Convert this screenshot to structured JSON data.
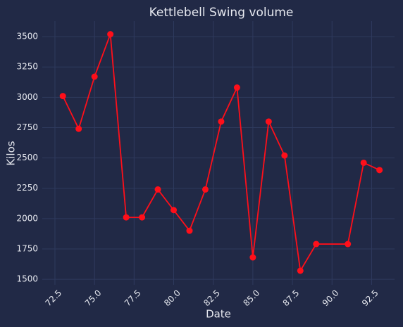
{
  "chart_data": {
    "type": "line",
    "title": "Kettlebell Swing volume",
    "xlabel": "Date",
    "ylabel": "Kilos",
    "x": [
      73,
      74,
      75,
      76,
      77,
      78,
      79,
      80,
      81,
      82,
      83,
      84,
      85,
      86,
      87,
      88,
      89,
      91,
      92,
      93
    ],
    "series": [
      {
        "name": "Kettlebell Swing",
        "color": "#ff0f1a",
        "values": [
          3010,
          2740,
          3170,
          3520,
          2010,
          2010,
          2240,
          2070,
          1900,
          2240,
          2800,
          3080,
          1680,
          2800,
          2520,
          1570,
          1790,
          1790,
          2460,
          2400
        ]
      }
    ],
    "xlim": [
      71.7,
      93.95
    ],
    "ylim": [
      1454,
      3628
    ],
    "xticks": [
      72.5,
      {
        "value": 75,
        "label": "75.0"
      },
      77.5,
      {
        "value": 80,
        "label": "80.0"
      },
      82.5,
      {
        "value": 85,
        "label": "85.0"
      },
      87.5,
      {
        "value": 90,
        "label": "90.0"
      },
      92.5
    ],
    "yticks": [
      1500,
      1750,
      2000,
      2250,
      2500,
      2750,
      3000,
      3250,
      3500
    ],
    "grid": true
  }
}
